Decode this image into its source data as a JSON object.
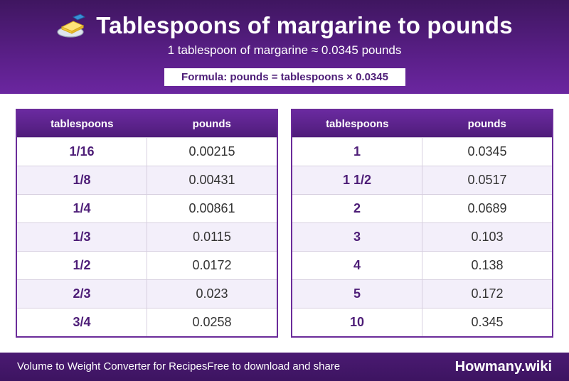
{
  "header": {
    "icon": "margarine-icon",
    "title": "Tablespoons of margarine to pounds",
    "subtitle": "1 tablespoon of margarine ≈ 0.0345 pounds",
    "formula": "Formula: pounds = tablespoons × 0.0345"
  },
  "tables": [
    {
      "col1": "tablespoons",
      "col2": "pounds",
      "rows": [
        {
          "tbsp": "1/16",
          "lb": "0.00215"
        },
        {
          "tbsp": "1/8",
          "lb": "0.00431"
        },
        {
          "tbsp": "1/4",
          "lb": "0.00861"
        },
        {
          "tbsp": "1/3",
          "lb": "0.0115"
        },
        {
          "tbsp": "1/2",
          "lb": "0.0172"
        },
        {
          "tbsp": "2/3",
          "lb": "0.023"
        },
        {
          "tbsp": "3/4",
          "lb": "0.0258"
        }
      ]
    },
    {
      "col1": "tablespoons",
      "col2": "pounds",
      "rows": [
        {
          "tbsp": "1",
          "lb": "0.0345"
        },
        {
          "tbsp": "1 1/2",
          "lb": "0.0517"
        },
        {
          "tbsp": "2",
          "lb": "0.0689"
        },
        {
          "tbsp": "3",
          "lb": "0.103"
        },
        {
          "tbsp": "4",
          "lb": "0.138"
        },
        {
          "tbsp": "5",
          "lb": "0.172"
        },
        {
          "tbsp": "10",
          "lb": "0.345"
        }
      ]
    }
  ],
  "footer": {
    "left": "Volume to Weight Converter for RecipesFree to download and share",
    "brand": "Howmany.wiki"
  },
  "colors": {
    "header_bg": "#5a1f88",
    "accent": "#4d1d77",
    "footer_bg": "#3d1461"
  }
}
